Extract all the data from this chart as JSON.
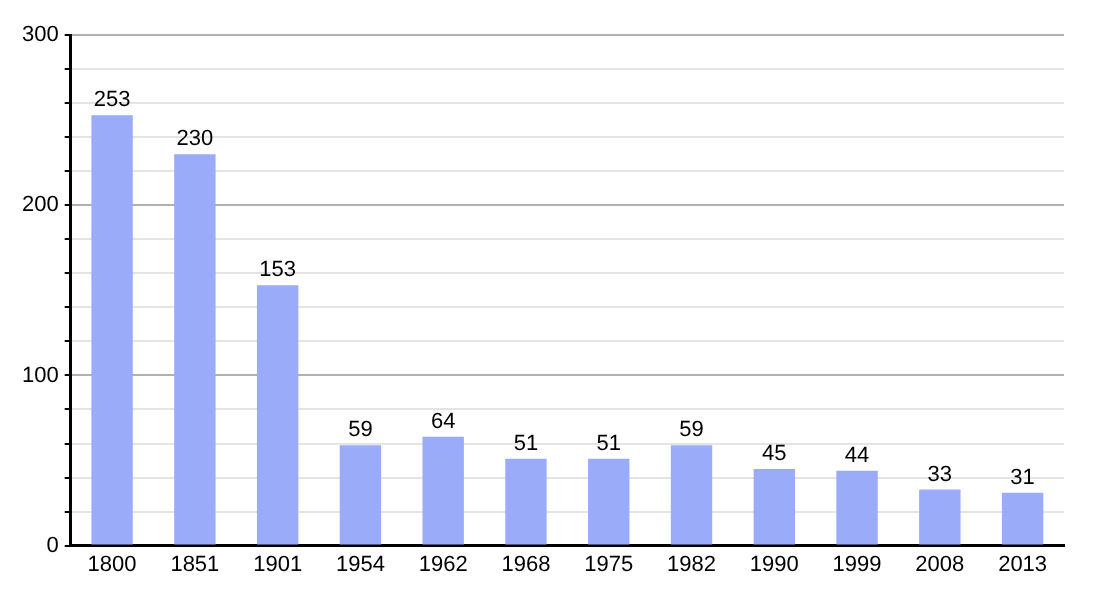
{
  "chart_data": {
    "type": "bar",
    "categories": [
      "1800",
      "1851",
      "1901",
      "1954",
      "1962",
      "1968",
      "1975",
      "1982",
      "1990",
      "1999",
      "2008",
      "2013"
    ],
    "values": [
      253,
      230,
      153,
      59,
      64,
      51,
      51,
      59,
      45,
      44,
      33,
      31
    ],
    "color": "#9aabf9",
    "ylim": [
      0,
      300
    ],
    "yticks": [
      0,
      {
        "value": 20,
        "label": null
      },
      {
        "value": 40,
        "label": null
      },
      {
        "value": 60,
        "label": null
      },
      {
        "value": 80,
        "label": null
      },
      100,
      {
        "value": 120,
        "label": null
      },
      {
        "value": 140,
        "label": null
      },
      {
        "value": 160,
        "label": null
      },
      {
        "value": 180,
        "label": null
      },
      200,
      {
        "value": 220,
        "label": null
      },
      {
        "value": 240,
        "label": null
      },
      {
        "value": 260,
        "label": null
      },
      {
        "value": 280,
        "label": null
      },
      300
    ],
    "grid": "y",
    "data_labels": true,
    "legend": false
  }
}
